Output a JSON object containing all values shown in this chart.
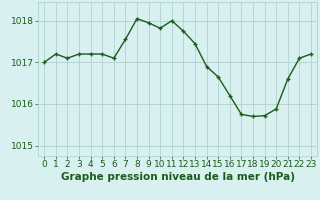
{
  "x": [
    0,
    1,
    2,
    3,
    4,
    5,
    6,
    7,
    8,
    9,
    10,
    11,
    12,
    13,
    14,
    15,
    16,
    17,
    18,
    19,
    20,
    21,
    22,
    23
  ],
  "y": [
    1017.0,
    1017.2,
    1017.1,
    1017.2,
    1017.2,
    1017.2,
    1017.1,
    1017.55,
    1018.05,
    1017.95,
    1017.82,
    1018.0,
    1017.75,
    1017.45,
    1016.9,
    1016.65,
    1016.2,
    1015.75,
    1015.7,
    1015.72,
    1015.88,
    1016.6,
    1017.1,
    1017.2
  ],
  "line_color": "#1a5c1a",
  "marker": "+",
  "marker_size": 3,
  "marker_linewidth": 1.0,
  "line_width": 1.0,
  "bg_color": "#d8f0f0",
  "grid_color": "#aacccc",
  "xlabel": "Graphe pression niveau de la mer (hPa)",
  "xlabel_color": "#1a5c1a",
  "xlabel_fontsize": 7.5,
  "tick_color": "#1a5c1a",
  "tick_fontsize": 6.5,
  "ylim": [
    1014.75,
    1018.45
  ],
  "xlim": [
    -0.5,
    23.5
  ],
  "yticks": [
    1015,
    1016,
    1017,
    1018
  ],
  "xticks": [
    0,
    1,
    2,
    3,
    4,
    5,
    6,
    7,
    8,
    9,
    10,
    11,
    12,
    13,
    14,
    15,
    16,
    17,
    18,
    19,
    20,
    21,
    22,
    23
  ]
}
